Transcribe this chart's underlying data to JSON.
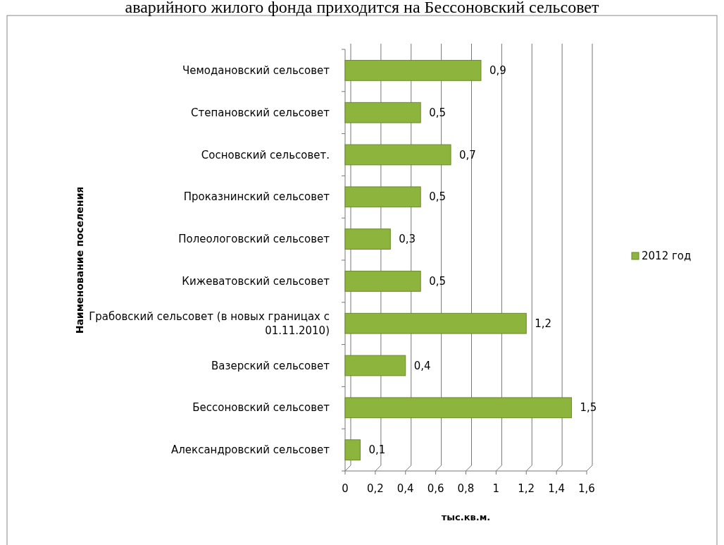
{
  "chart_data": {
    "type": "bar",
    "orientation": "horizontal",
    "title": "аварийного жилого фонда приходится на Бессоновский сельсовет",
    "xlabel": "тыс.кв.м.",
    "ylabel": "Наименование поселения",
    "categories": [
      "Чемодановский сельсовет",
      "Степановский сельсовет",
      "Сосновский сельсовет.",
      "Проказнинский сельсовет",
      "Полеологовский сельсовет",
      "Кижеватовский сельсовет",
      "Грабовский сельсовет (в новых границах с 01.11.2010)",
      "Вазерский сельсовет",
      "Бессоновский сельсовет",
      "Александровский сельсовет"
    ],
    "series": [
      {
        "name": "2012 год",
        "color": "#8db43c",
        "values": [
          0.9,
          0.5,
          0.7,
          0.5,
          0.3,
          0.5,
          1.2,
          0.4,
          1.5,
          0.1
        ],
        "value_labels": [
          "0,9",
          "0,5",
          "0,7",
          "0,5",
          "0,3",
          "0,5",
          "1,2",
          "0,4",
          "1,5",
          "0,1"
        ]
      }
    ],
    "xlim": [
      0,
      1.6
    ],
    "xticks": [
      0,
      {
        "value": 0.2,
        "label": "0,2"
      },
      {
        "value": 0.4,
        "label": "0,4"
      },
      {
        "value": 0.6,
        "label": "0,6"
      },
      {
        "value": 0.8,
        "label": "0,8"
      },
      1,
      {
        "value": 1.2,
        "label": "1,2"
      },
      {
        "value": 1.4,
        "label": "1,4"
      },
      {
        "value": 1.6,
        "label": "1,6"
      }
    ],
    "grid": "x",
    "legend": "right"
  }
}
